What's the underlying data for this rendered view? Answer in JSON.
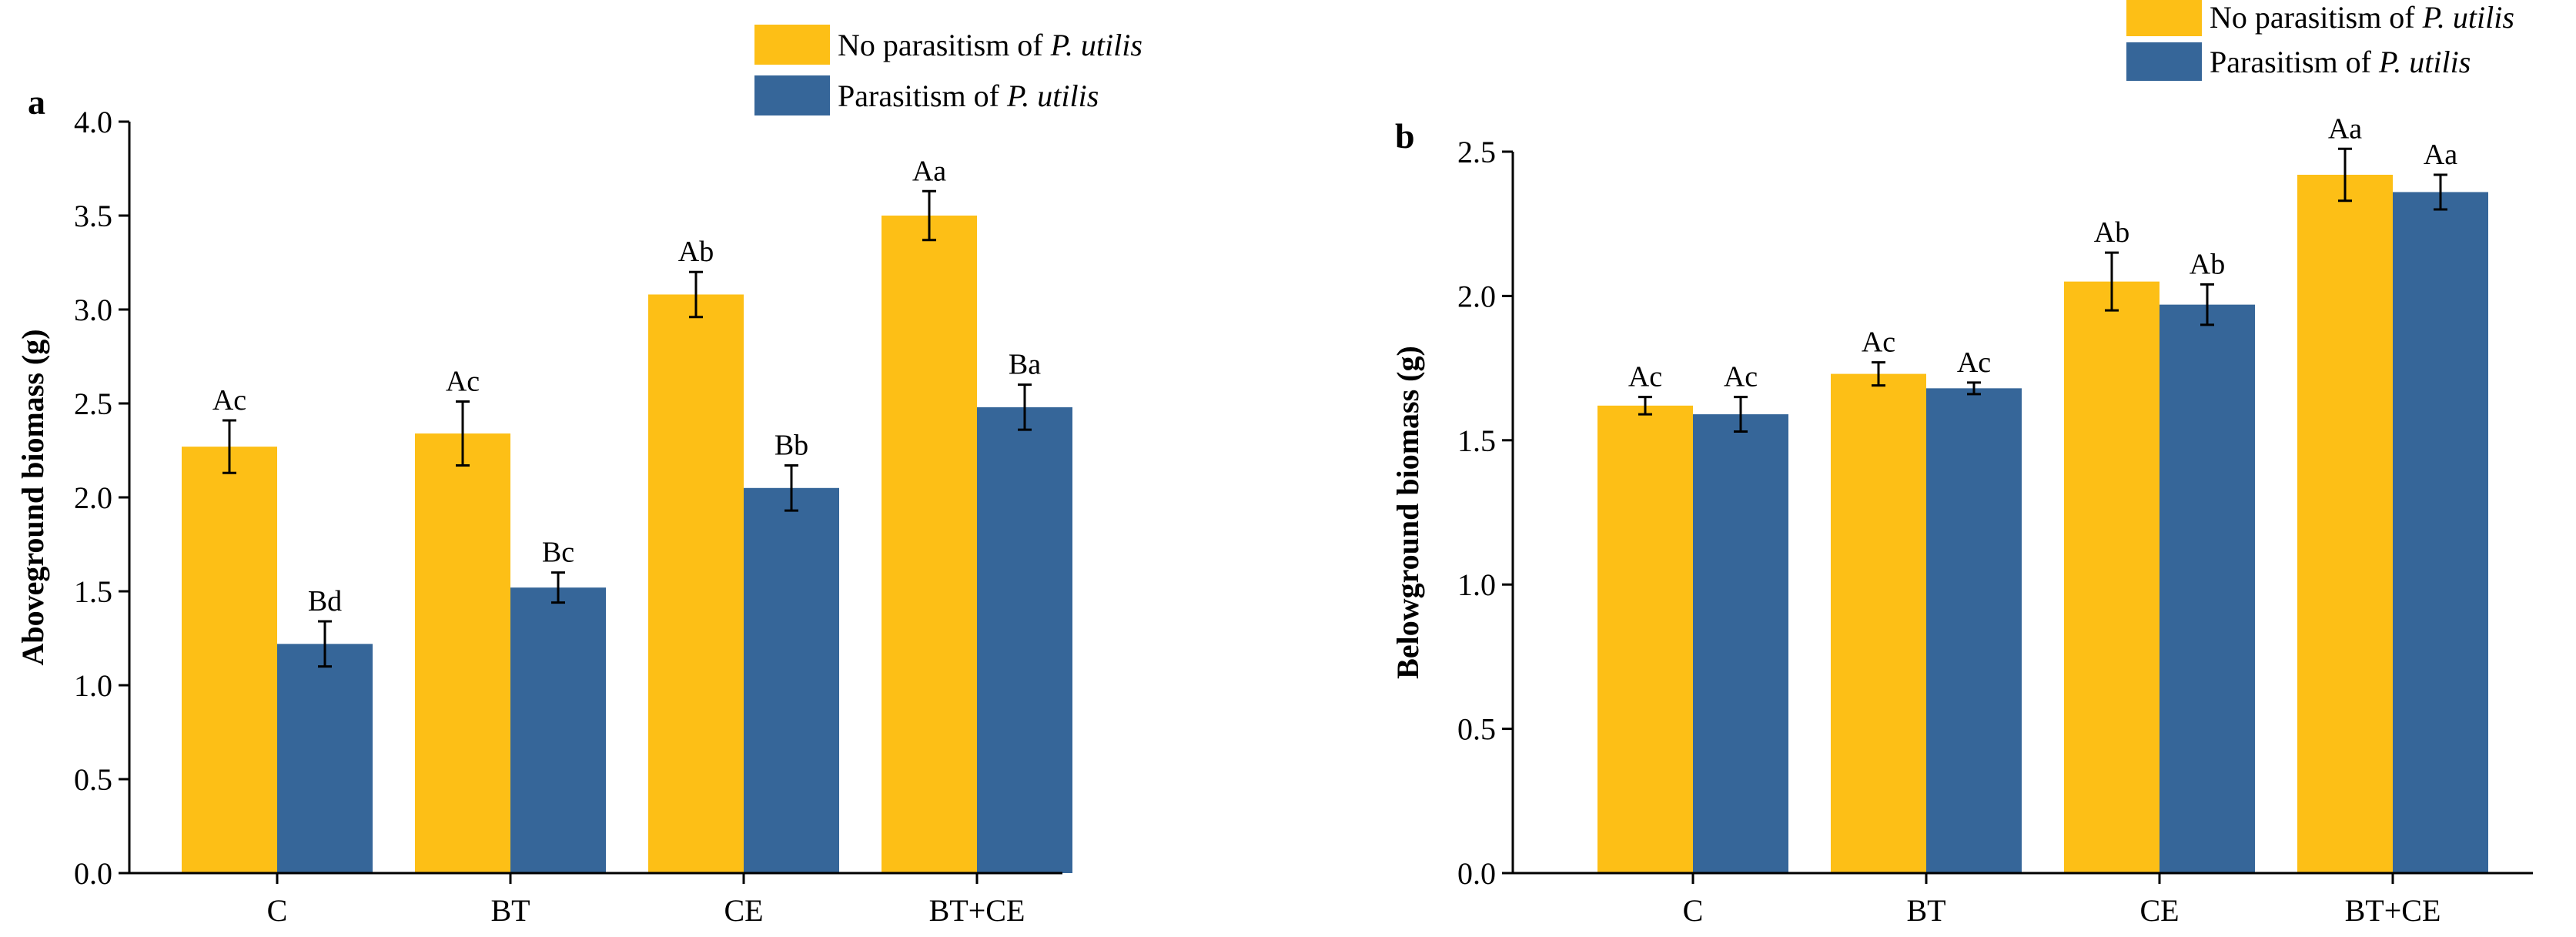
{
  "colors": {
    "no_parasitism": "#FDBF16",
    "parasitism": "#366699",
    "axis": "#000000"
  },
  "chart_data": [
    {
      "type": "bar",
      "panel": "a",
      "categories": [
        "C",
        "BT",
        "CE",
        "BT+CE"
      ],
      "ylabel": "Aboveground biomass (g)",
      "ylim": [
        0,
        4.0
      ],
      "yticks": [
        "0.0",
        "0.5",
        "1.0",
        "1.5",
        "2.0",
        "2.5",
        "3.0",
        "3.5",
        "4.0"
      ],
      "grid": false,
      "legend_position": "top-right",
      "series": [
        {
          "name_plain": "No parasitism of ",
          "name_italic": "P. utilis",
          "color_key": "no_parasitism",
          "values": [
            2.27,
            2.34,
            3.08,
            3.5
          ],
          "errors": [
            0.14,
            0.17,
            0.12,
            0.13
          ],
          "labels": [
            "Ac",
            "Ac",
            "Ab",
            "Aa"
          ]
        },
        {
          "name_plain": "Parasitism of ",
          "name_italic": "P. utilis",
          "color_key": "parasitism",
          "values": [
            1.22,
            1.52,
            2.05,
            2.48
          ],
          "errors": [
            0.12,
            0.08,
            0.12,
            0.12
          ],
          "labels": [
            "Bd",
            "Bc",
            "Bb",
            "Ba"
          ]
        }
      ]
    },
    {
      "type": "bar",
      "panel": "b",
      "categories": [
        "C",
        "BT",
        "CE",
        "BT+CE"
      ],
      "ylabel": "Belowground biomass (g)",
      "ylim": [
        0,
        2.5
      ],
      "yticks": [
        "0.0",
        "0.5",
        "1.0",
        "1.5",
        "2.0",
        "2.5"
      ],
      "grid": false,
      "legend_position": "top-right",
      "series": [
        {
          "name_plain": "No parasitism of ",
          "name_italic": "P. utilis",
          "color_key": "no_parasitism",
          "values": [
            1.62,
            1.73,
            2.05,
            2.42
          ],
          "errors": [
            0.03,
            0.04,
            0.1,
            0.09
          ],
          "labels": [
            "Ac",
            "Ac",
            "Ab",
            "Aa"
          ]
        },
        {
          "name_plain": "Parasitism of ",
          "name_italic": "P. utilis",
          "color_key": "parasitism",
          "values": [
            1.59,
            1.68,
            1.97,
            2.36
          ],
          "errors": [
            0.06,
            0.02,
            0.07,
            0.06
          ],
          "labels": [
            "Ac",
            "Ac",
            "Ab",
            "Aa"
          ]
        }
      ]
    }
  ]
}
